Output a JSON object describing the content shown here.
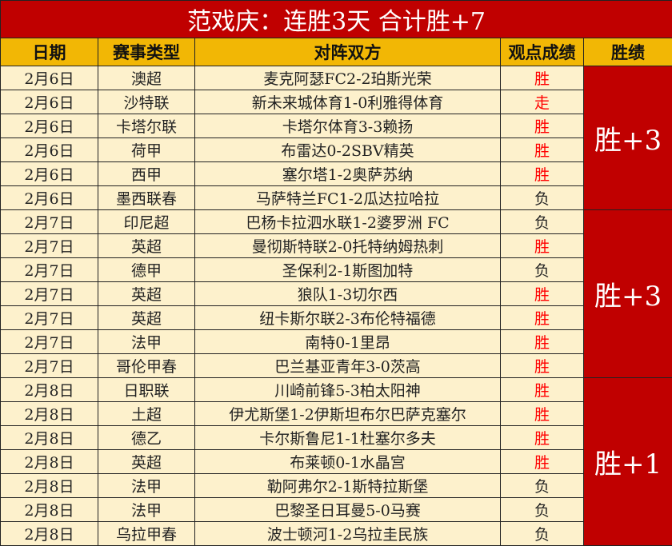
{
  "title": "范戏庆：连胜3天  合计胜+7",
  "headers": [
    "日期",
    "赛事类型",
    "对阵双方",
    "观点成绩",
    "胜绩"
  ],
  "colors": {
    "title_bg": "#c00000",
    "header_bg": "#f2b705",
    "row_bg": "#fdf1cc",
    "win": "#ff0000",
    "summary_bg": "#c00000"
  },
  "groups": [
    {
      "summary": "胜+3",
      "rows": [
        {
          "date": "2月6日",
          "type": "澳超",
          "match": "麦克阿瑟FC2-2珀斯光荣",
          "result": "胜"
        },
        {
          "date": "2月6日",
          "type": "沙特联",
          "match": "新未来城体育1-0利雅得体育",
          "result": "走"
        },
        {
          "date": "2月6日",
          "type": "卡塔尔联",
          "match": "卡塔尔体育3-3赖扬",
          "result": "胜"
        },
        {
          "date": "2月6日",
          "type": "荷甲",
          "match": "布雷达0-2SBV精英",
          "result": "胜"
        },
        {
          "date": "2月6日",
          "type": "西甲",
          "match": "塞尔塔1-2奥萨苏纳",
          "result": "胜"
        },
        {
          "date": "2月6日",
          "type": "墨西联春",
          "match": "马萨特兰FC1-2瓜达拉哈拉",
          "result": "负"
        }
      ]
    },
    {
      "summary": "胜+3",
      "rows": [
        {
          "date": "2月7日",
          "type": "印尼超",
          "match": "巴杨卡拉泗水联1-2婆罗洲 FC",
          "result": "负"
        },
        {
          "date": "2月7日",
          "type": "英超",
          "match": "曼彻斯特联2-0托特纳姆热刺",
          "result": "胜"
        },
        {
          "date": "2月7日",
          "type": "德甲",
          "match": "圣保利2-1斯图加特",
          "result": "负"
        },
        {
          "date": "2月7日",
          "type": "英超",
          "match": "狼队1-3切尔西",
          "result": "胜"
        },
        {
          "date": "2月7日",
          "type": "英超",
          "match": "纽卡斯尔联2-3布伦特福德",
          "result": "胜"
        },
        {
          "date": "2月7日",
          "type": "法甲",
          "match": "南特0-1里昂",
          "result": "胜"
        },
        {
          "date": "2月7日",
          "type": "哥伦甲春",
          "match": "巴兰基亚青年3-0茨高",
          "result": "胜"
        }
      ]
    },
    {
      "summary": "胜+1",
      "rows": [
        {
          "date": "2月8日",
          "type": "日职联",
          "match": "川崎前锋5-3柏太阳神",
          "result": "胜"
        },
        {
          "date": "2月8日",
          "type": "土超",
          "match": "伊尤斯堡1-2伊斯坦布尔巴萨克塞尔",
          "result": "胜"
        },
        {
          "date": "2月8日",
          "type": "德乙",
          "match": "卡尔斯鲁尼1-1杜塞尔多夫",
          "result": "胜"
        },
        {
          "date": "2月8日",
          "type": "英超",
          "match": "布莱顿0-1水晶宫",
          "result": "胜"
        },
        {
          "date": "2月8日",
          "type": "法甲",
          "match": "勒阿弗尔2-1斯特拉斯堡",
          "result": "负"
        },
        {
          "date": "2月8日",
          "type": "法甲",
          "match": "巴黎圣日耳曼5-0马赛",
          "result": "负"
        },
        {
          "date": "2月8日",
          "type": "乌拉甲春",
          "match": "波士顿河1-2乌拉圭民族",
          "result": "负"
        }
      ]
    }
  ]
}
